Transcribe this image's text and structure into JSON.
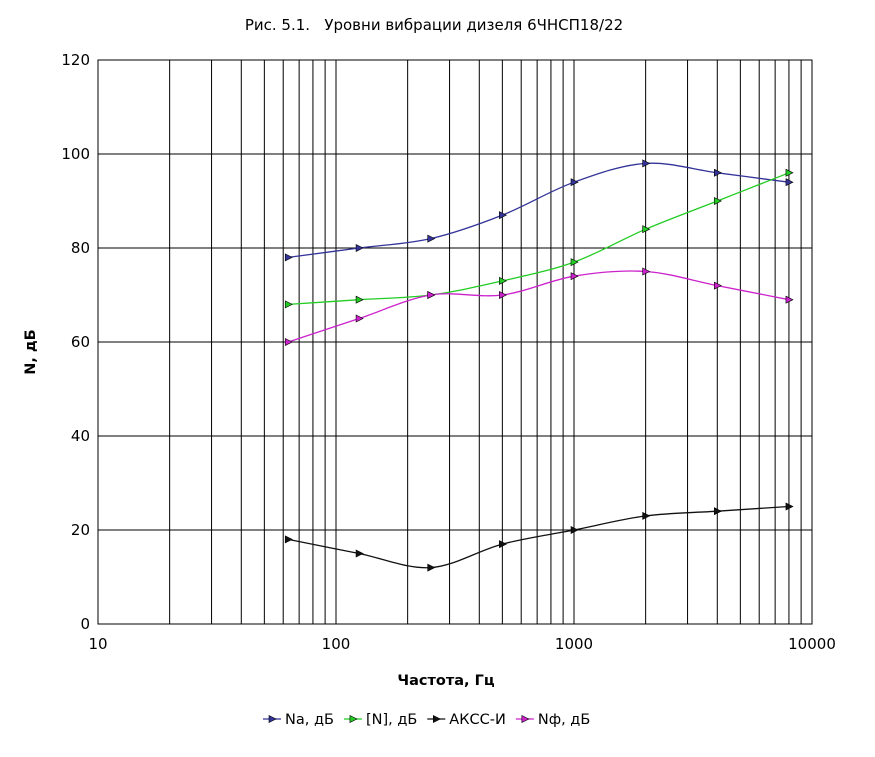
{
  "chart_data": {
    "type": "line",
    "title": "Рис. 5.1.   Уровни вибрации дизеля 6ЧНСП18/22",
    "xlabel": "Частота, Гц",
    "ylabel": "N, дБ",
    "x_scale": "log",
    "xlim": [
      10,
      10000
    ],
    "ylim": [
      0,
      120
    ],
    "x_ticks": [
      10,
      100,
      1000,
      10000
    ],
    "x_tick_labels": [
      "10",
      "100",
      "1000",
      "10000"
    ],
    "y_ticks": [
      0,
      20,
      40,
      60,
      80,
      100,
      120
    ],
    "y_tick_labels": [
      "0",
      "20",
      "40",
      "60",
      "80",
      "100",
      "120"
    ],
    "grid": true,
    "smooth": true,
    "legend_position": "bottom",
    "x": [
      63,
      125,
      250,
      500,
      1000,
      2000,
      4000,
      8000
    ],
    "series": [
      {
        "name": "Na, дБ",
        "color": "#333399",
        "values": [
          78,
          80,
          82,
          87,
          94,
          98,
          96,
          94
        ]
      },
      {
        "name": "[N], дБ",
        "color": "#22cc22",
        "values": [
          68,
          69,
          70,
          73,
          77,
          84,
          90,
          96
        ]
      },
      {
        "name": "АКСС-И",
        "color": "#111111",
        "values": [
          18,
          15,
          12,
          17,
          20,
          23,
          24,
          25
        ]
      },
      {
        "name": "Nф, дБ",
        "color": "#cc22cc",
        "values": [
          60,
          65,
          70,
          70,
          74,
          75,
          72,
          69
        ]
      }
    ]
  }
}
